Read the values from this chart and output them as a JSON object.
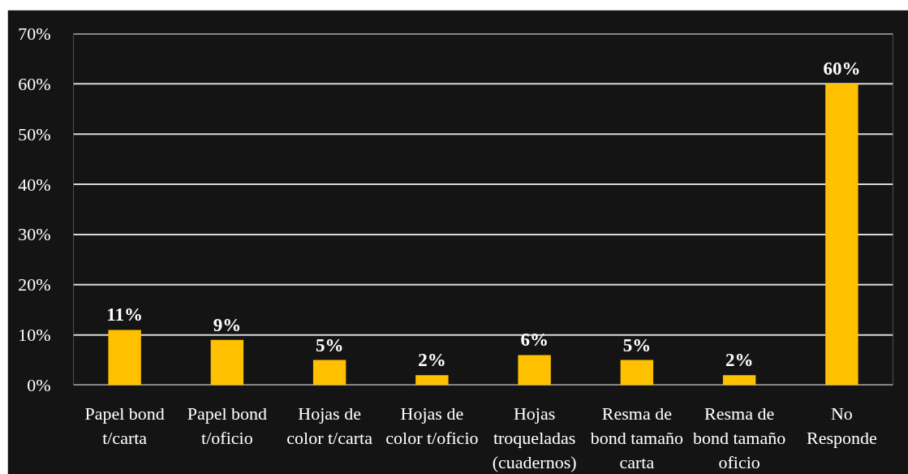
{
  "chart_data": {
    "type": "bar",
    "categories": [
      "Papel bond t/carta",
      "Papel bond t/oficio",
      "Hojas de color t/carta",
      "Hojas de color t/oficio",
      "Hojas troqueladas (cuadernos)",
      "Resma de bond tamaño carta",
      "Resma de bond tamaño oficio",
      "No Responde"
    ],
    "values": [
      11,
      9,
      5,
      2,
      6,
      5,
      2,
      60
    ],
    "color": "#ffc000",
    "value_labels": [
      "11%",
      "9%",
      "5%",
      "2%",
      "6%",
      "5%",
      "2%",
      "60%"
    ],
    "ylim": [
      0,
      70
    ],
    "yticks": [
      {
        "value": 0,
        "label": "0%"
      },
      {
        "value": 10,
        "label": "10%"
      },
      {
        "value": 20,
        "label": "20%"
      },
      {
        "value": 30,
        "label": "30%"
      },
      {
        "value": 40,
        "label": "40%"
      },
      {
        "value": 50,
        "label": "50%"
      },
      {
        "value": 60,
        "label": "60%"
      },
      {
        "value": 70,
        "label": "70%"
      }
    ],
    "grid": "y"
  }
}
